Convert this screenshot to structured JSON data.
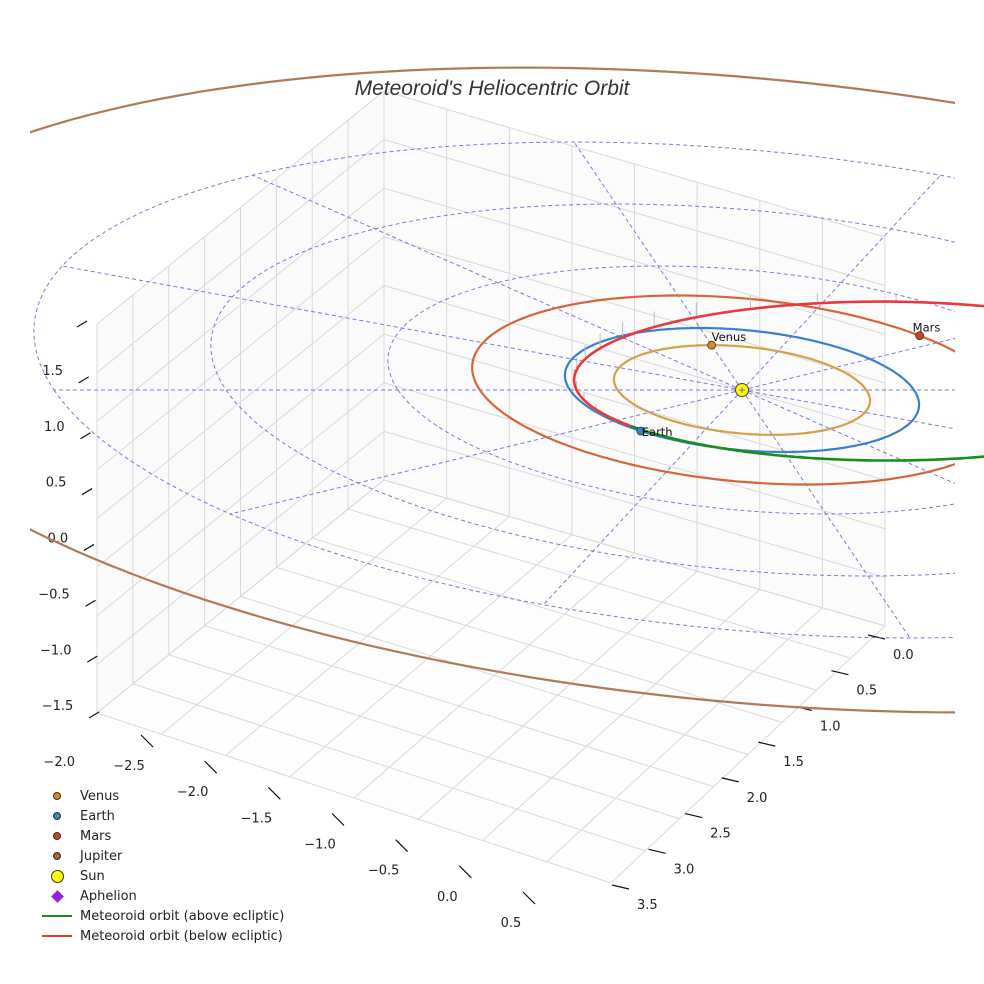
{
  "chart_data": {
    "type": "line",
    "title": "Meteoroid's Heliocentric Orbit",
    "projection": "3d",
    "x_ticks": [
      "−2.5",
      "−2.0",
      "−1.5",
      "−1.0",
      "−0.5",
      "0.0",
      "0.5"
    ],
    "y_ticks": [
      "0.0",
      "0.5",
      "1.0",
      "1.5",
      "2.0",
      "2.5",
      "3.0",
      "3.5"
    ],
    "z_ticks": [
      "1.5",
      "1.0",
      "0.5",
      "0.0",
      "−0.5",
      "−1.0",
      "−1.5",
      "−2.0"
    ],
    "xlim": [
      -2.8,
      0.8
    ],
    "ylim": [
      -0.2,
      3.6
    ],
    "zlim": [
      -2.1,
      1.9
    ],
    "orbits": [
      {
        "name": "Venus",
        "radius_au": 0.723,
        "color": "#d4a04c"
      },
      {
        "name": "Earth",
        "radius_au": 1.0,
        "color": "#3a7fcf"
      },
      {
        "name": "Mars",
        "radius_au": 1.524,
        "color": "#d9643a"
      },
      {
        "name": "Jupiter",
        "radius_au": 5.2,
        "color": "#b07a5a"
      }
    ],
    "reference_circles_au": [
      1,
      2,
      3,
      4
    ],
    "labels": {
      "mars": "Mars",
      "venus": "Venus",
      "earth": "Earth"
    },
    "meteoroid": {
      "perihelion_au": 0.96,
      "aphelion_au": 2.69,
      "inclination_deg": 5
    },
    "legend": [
      {
        "label": "Venus",
        "type": "dot",
        "color": "#d88a1c"
      },
      {
        "label": "Earth",
        "type": "dot",
        "color": "#2f86c8"
      },
      {
        "label": "Mars",
        "type": "dot",
        "color": "#c9461f"
      },
      {
        "label": "Jupiter",
        "type": "dot",
        "color": "#b0602e"
      },
      {
        "label": "Sun",
        "type": "sun",
        "color": "#ffff00"
      },
      {
        "label": "Aphelion",
        "type": "diamond",
        "color": "#9b1fd6"
      },
      {
        "label": "Meteoroid orbit (above ecliptic)",
        "type": "line",
        "color": "#1a8c1a"
      },
      {
        "label": "Meteoroid orbit (below ecliptic)",
        "type": "line",
        "color": "#e83a3a"
      }
    ]
  }
}
